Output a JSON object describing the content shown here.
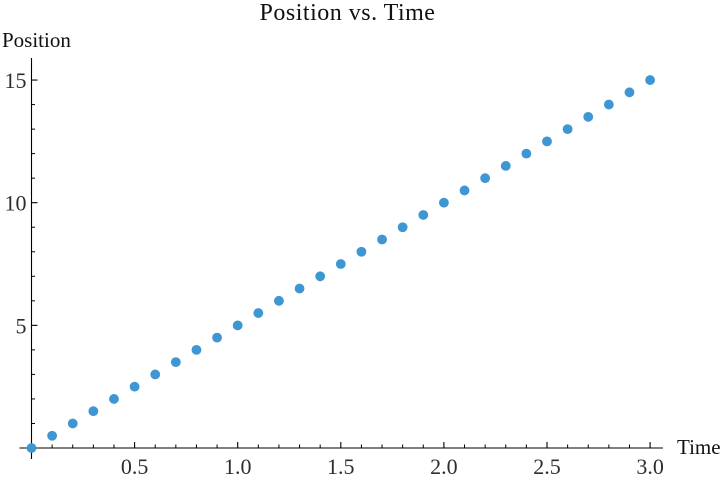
{
  "chart_data": {
    "type": "scatter",
    "title": "Position vs. Time",
    "xlabel": "Time",
    "ylabel": "Position",
    "x": [
      0.0,
      0.1,
      0.2,
      0.3,
      0.4,
      0.5,
      0.6,
      0.7,
      0.8,
      0.9,
      1.0,
      1.1,
      1.2,
      1.3,
      1.4,
      1.5,
      1.6,
      1.7,
      1.8,
      1.9,
      2.0,
      2.1,
      2.2,
      2.3,
      2.4,
      2.5,
      2.6,
      2.7,
      2.8,
      2.9,
      3.0
    ],
    "y": [
      0.0,
      0.5,
      1.0,
      1.5,
      2.0,
      2.5,
      3.0,
      3.5,
      4.0,
      4.5,
      5.0,
      5.5,
      6.0,
      6.5,
      7.0,
      7.5,
      8.0,
      8.5,
      9.0,
      9.5,
      10.0,
      10.5,
      11.0,
      11.5,
      12.0,
      12.5,
      13.0,
      13.5,
      14.0,
      14.5,
      15.0
    ],
    "xlim": [
      0,
      3.07
    ],
    "ylim": [
      0,
      15.9
    ],
    "x_major_ticks": [
      0.5,
      1.0,
      1.5,
      2.0,
      2.5,
      3.0
    ],
    "x_tick_labels": [
      "0.5",
      "1.0",
      "1.5",
      "2.0",
      "2.5",
      "3.0"
    ],
    "x_minor_step": 0.1,
    "y_major_ticks": [
      5,
      10,
      15
    ],
    "y_tick_labels": [
      "5",
      "10",
      "15"
    ],
    "y_minor_step": 1,
    "grid": false,
    "legend": null,
    "colors": {
      "point": "#3e96d2",
      "axis": "#000000",
      "tick_label": "#2e2e2e",
      "background": "#ffffff"
    }
  }
}
